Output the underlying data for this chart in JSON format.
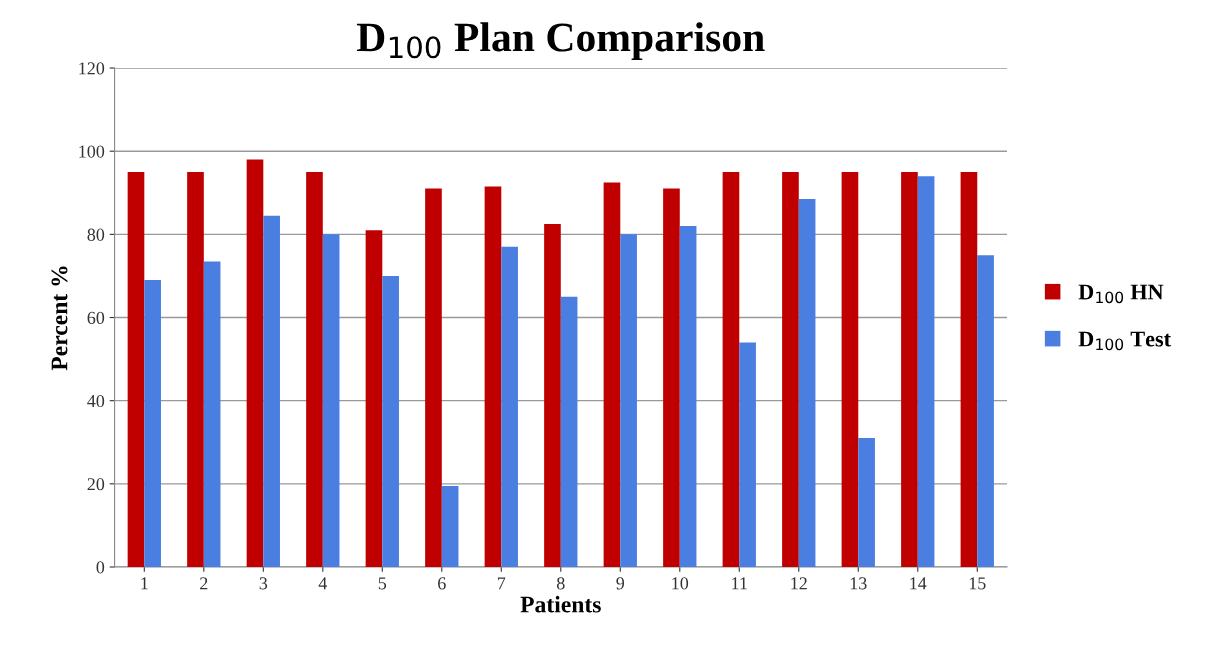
{
  "chart_data": {
    "type": "bar",
    "title": "D$_{100}$ Plan Comparison",
    "xlabel": "Patients",
    "ylabel": "Percent %",
    "categories": [
      "1",
      "2",
      "3",
      "4",
      "5",
      "6",
      "7",
      "8",
      "9",
      "10",
      "11",
      "12",
      "13",
      "14",
      "15"
    ],
    "series": [
      {
        "name": "D$_{100}$ HN",
        "color": "#c00000",
        "values": [
          95,
          95,
          98,
          95,
          81,
          91,
          91.5,
          82.5,
          92.5,
          91,
          95,
          95,
          95,
          95,
          95
        ]
      },
      {
        "name": "D$_{100}$ Test",
        "color": "#4a7ee0",
        "values": [
          69,
          73.5,
          84.5,
          80,
          70,
          19.5,
          77,
          65,
          80,
          82,
          54,
          88.5,
          31,
          94,
          75
        ]
      }
    ],
    "ylim": [
      0,
      120
    ],
    "yticks": [
      0,
      20,
      40,
      60,
      80,
      100,
      120
    ],
    "grid": "y",
    "legend": "right"
  }
}
